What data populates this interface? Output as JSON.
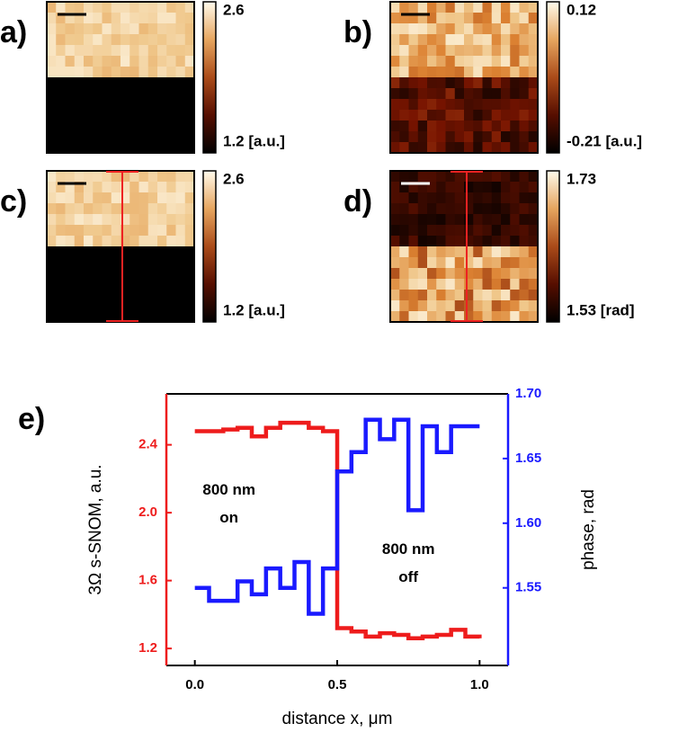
{
  "panels": [
    {
      "label": "a)",
      "colorbar_max": "2.6",
      "colorbar_min": "1.2 [a.u.]"
    },
    {
      "label": "b)",
      "colorbar_max": "0.12",
      "colorbar_min": "-0.21 [a.u.]"
    },
    {
      "label": "c)",
      "colorbar_max": "2.6",
      "colorbar_min": "1.2 [a.u.]"
    },
    {
      "label": "d)",
      "colorbar_max": "1.73",
      "colorbar_min": "1.53 [rad]"
    }
  ],
  "chart_data": {
    "type": "line",
    "label": "e)",
    "step": "post",
    "xlabel": "distance x, μm",
    "ylabel": "3Ω s-SNOM, a.u.",
    "y2label": "phase, rad",
    "x": [
      0,
      0.05,
      0.1,
      0.15,
      0.2,
      0.25,
      0.3,
      0.35,
      0.4,
      0.45,
      0.5,
      0.55,
      0.6,
      0.65,
      0.7,
      0.75,
      0.8,
      0.85,
      0.9,
      0.95,
      1.0
    ],
    "series": [
      {
        "name": "3Ω s-SNOM",
        "color": "#ee1c1c",
        "axis": "y",
        "values": [
          2.48,
          2.48,
          2.49,
          2.5,
          2.45,
          2.5,
          2.53,
          2.53,
          2.5,
          2.48,
          1.32,
          1.3,
          1.27,
          1.29,
          1.28,
          1.26,
          1.27,
          1.28,
          1.31,
          1.27,
          1.26
        ]
      },
      {
        "name": "phase",
        "color": "#1a1aff",
        "axis": "y2",
        "values": [
          1.55,
          1.54,
          1.54,
          1.555,
          1.545,
          1.565,
          1.55,
          1.57,
          1.53,
          1.565,
          1.64,
          1.655,
          1.68,
          1.665,
          1.68,
          1.61,
          1.675,
          1.655,
          1.675,
          1.675,
          1.675
        ]
      }
    ],
    "xlim": [
      -0.1,
      1.1
    ],
    "xticks": [
      {
        "value": 0,
        "label": "0.0"
      },
      0.5,
      {
        "value": 1,
        "label": "1.0"
      }
    ],
    "ylim": [
      1.1,
      2.7
    ],
    "yticks": [
      1.2,
      1.6,
      {
        "value": 2,
        "label": "2.0"
      },
      2.4
    ],
    "y2lim": [
      1.49,
      1.7
    ],
    "y2ticks": [
      1.55,
      {
        "value": 1.6,
        "label": "1.60"
      },
      1.65,
      {
        "value": 1.7,
        "label": "1.70"
      }
    ],
    "annotations": [
      {
        "lines": [
          "800 nm",
          "on"
        ],
        "x": 0.12,
        "y": 2.05
      },
      {
        "lines": [
          "800 nm",
          "off"
        ],
        "x": 0.75,
        "y": 1.7
      }
    ]
  }
}
